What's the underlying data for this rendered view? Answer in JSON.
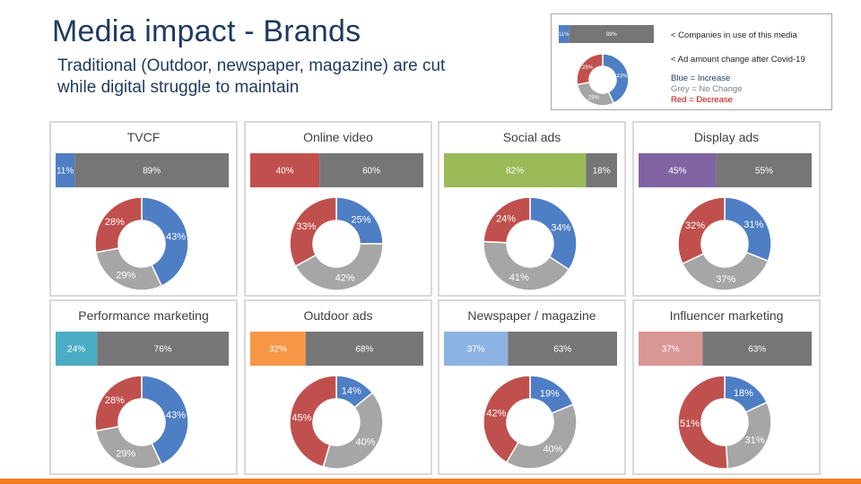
{
  "title": "Media impact - Brands",
  "subtitle_line1": "Traditional (Outdoor, newspaper, magazine) are cut",
  "subtitle_line2": "while digital struggle to maintain",
  "legend": {
    "bar_text": "< Companies in use of this media",
    "donut_text": "< Ad amount change after Covid-19",
    "blue_label": "Blue = Increase",
    "grey_label": "Grey = No Change",
    "red_label": "Red = Decrease",
    "example_bar": [
      11,
      89
    ],
    "example_donut": [
      43,
      29,
      28
    ]
  },
  "colors": {
    "increase": "#4e7ec4",
    "no_change": "#a6a6a6",
    "decrease": "#c0504d",
    "bar_rest": "#767676",
    "accent_line": "#f47a20"
  },
  "chart_data": [
    {
      "type": "bar+donut",
      "title": "TVCF",
      "bar": {
        "use": 11,
        "rest": 89,
        "color": "#4e7ec4"
      },
      "donut": {
        "increase": 43,
        "no_change": 29,
        "decrease": 28
      }
    },
    {
      "type": "bar+donut",
      "title": "Online video",
      "bar": {
        "use": 40,
        "rest": 60,
        "color": "#c0504d"
      },
      "donut": {
        "increase": 25,
        "no_change": 42,
        "decrease": 33
      }
    },
    {
      "type": "bar+donut",
      "title": "Social ads",
      "bar": {
        "use": 82,
        "rest": 18,
        "color": "#9bbb59"
      },
      "donut": {
        "increase": 34,
        "no_change": 41,
        "decrease": 24
      }
    },
    {
      "type": "bar+donut",
      "title": "Display ads",
      "bar": {
        "use": 45,
        "rest": 55,
        "color": "#8064a2"
      },
      "donut": {
        "increase": 31,
        "no_change": 37,
        "decrease": 32
      }
    },
    {
      "type": "bar+donut",
      "title": "Performance marketing",
      "bar": {
        "use": 24,
        "rest": 76,
        "color": "#4bacc6"
      },
      "donut": {
        "increase": 43,
        "no_change": 29,
        "decrease": 28
      }
    },
    {
      "type": "bar+donut",
      "title": "Outdoor ads",
      "bar": {
        "use": 32,
        "rest": 68,
        "color": "#f79646"
      },
      "donut": {
        "increase": 14,
        "no_change": 40,
        "decrease": 45
      }
    },
    {
      "type": "bar+donut",
      "title": "Newspaper / magazine",
      "bar": {
        "use": 37,
        "rest": 63,
        "color": "#8db3e2"
      },
      "donut": {
        "increase": 19,
        "no_change": 40,
        "decrease": 42
      }
    },
    {
      "type": "bar+donut",
      "title": "Influencer marketing",
      "bar": {
        "use": 37,
        "rest": 63,
        "color": "#d99694"
      },
      "donut": {
        "increase": 18,
        "no_change": 31,
        "decrease": 51
      }
    }
  ]
}
